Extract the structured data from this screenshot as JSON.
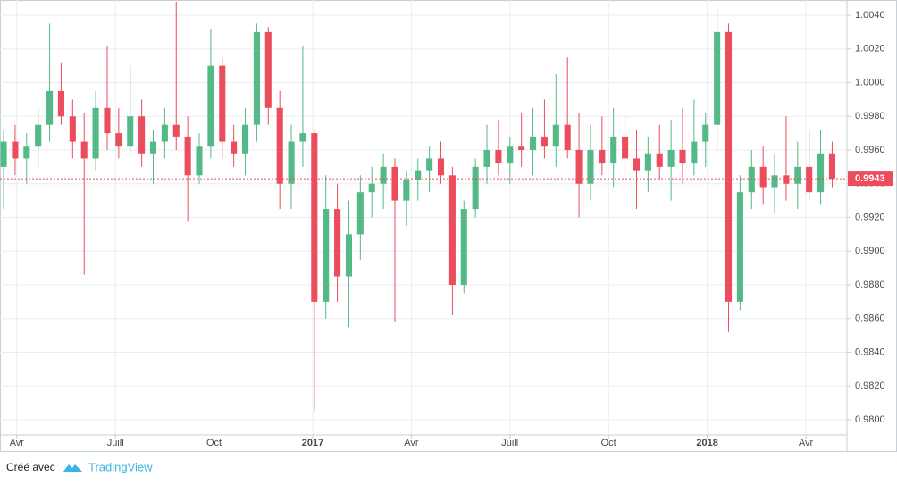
{
  "chart_data": {
    "type": "candlestick",
    "x": [
      2.6,
      2.95,
      3.3,
      3.65,
      4.0,
      4.35,
      4.7,
      5.05,
      5.4,
      5.75,
      6.1,
      6.45,
      6.8,
      7.15,
      7.5,
      7.85,
      8.2,
      8.55,
      8.9,
      9.25,
      9.6,
      9.95,
      10.3,
      10.65,
      11.0,
      11.35,
      11.7,
      12.05,
      12.4,
      12.75,
      13.1,
      13.45,
      13.8,
      14.15,
      14.5,
      14.85,
      15.2,
      15.55,
      15.9,
      16.25,
      16.6,
      16.95,
      17.3,
      17.65,
      18.0,
      18.35,
      18.7,
      19.05,
      19.4,
      19.75,
      20.1,
      20.45,
      20.8,
      21.15,
      21.5,
      21.85,
      22.2,
      22.55,
      22.9,
      23.25,
      23.6,
      23.95,
      24.3,
      24.65,
      25.0,
      25.35,
      25.7,
      26.05,
      26.4,
      26.75,
      27.1,
      27.45,
      27.8
    ],
    "open": [
      0.995,
      0.9965,
      0.9955,
      0.9962,
      0.9975,
      0.9995,
      0.998,
      0.9965,
      0.9955,
      0.9985,
      0.997,
      0.9962,
      0.998,
      0.9958,
      0.9965,
      0.9975,
      0.9968,
      0.9945,
      0.9962,
      1.001,
      0.9965,
      0.9958,
      0.9975,
      1.003,
      0.9985,
      0.994,
      0.9965,
      0.997,
      0.987,
      0.9925,
      0.9885,
      0.991,
      0.9935,
      0.994,
      0.995,
      0.993,
      0.9942,
      0.9948,
      0.9955,
      0.9945,
      0.988,
      0.9925,
      0.995,
      0.996,
      0.9952,
      0.9962,
      0.996,
      0.9968,
      0.9962,
      0.9975,
      0.996,
      0.994,
      0.996,
      0.9952,
      0.9968,
      0.9955,
      0.9948,
      0.9958,
      0.995,
      0.996,
      0.9952,
      0.9965,
      0.9975,
      1.003,
      0.987,
      0.9935,
      0.995,
      0.9938,
      0.9945,
      0.994,
      0.995,
      0.9935,
      0.9958
    ],
    "high": [
      0.9972,
      0.9975,
      0.997,
      0.9985,
      1.0035,
      1.0012,
      0.999,
      0.9982,
      0.9995,
      1.0022,
      0.9985,
      1.001,
      0.999,
      0.9972,
      0.9985,
      1.0048,
      0.998,
      0.997,
      1.0032,
      1.0015,
      0.9975,
      0.9985,
      1.0035,
      1.0033,
      0.9995,
      0.9975,
      1.0022,
      0.9972,
      0.9945,
      0.994,
      0.993,
      0.9945,
      0.995,
      0.9958,
      0.9955,
      0.9948,
      0.9955,
      0.9962,
      0.9965,
      0.995,
      0.993,
      0.9955,
      0.9975,
      0.9978,
      0.9968,
      0.9982,
      0.9985,
      0.999,
      1.0005,
      1.0015,
      0.9982,
      0.9975,
      0.998,
      0.9985,
      0.998,
      0.9972,
      0.9968,
      0.9975,
      0.9978,
      0.9985,
      0.999,
      0.9982,
      1.0044,
      1.0035,
      0.9945,
      0.996,
      0.9962,
      0.9958,
      0.998,
      0.9965,
      0.9972,
      0.9972,
      0.9965
    ],
    "low": [
      0.9925,
      0.9945,
      0.994,
      0.995,
      0.9965,
      0.9975,
      0.9955,
      0.9886,
      0.9948,
      0.996,
      0.9955,
      0.9958,
      0.995,
      0.994,
      0.9955,
      0.996,
      0.9918,
      0.994,
      0.9955,
      0.9955,
      0.995,
      0.9945,
      0.9965,
      0.9975,
      0.9925,
      0.9925,
      0.995,
      0.9805,
      0.986,
      0.987,
      0.9855,
      0.9895,
      0.992,
      0.9925,
      0.9858,
      0.9915,
      0.993,
      0.9935,
      0.994,
      0.9862,
      0.9875,
      0.992,
      0.994,
      0.9945,
      0.994,
      0.995,
      0.9945,
      0.9955,
      0.995,
      0.9955,
      0.992,
      0.993,
      0.9945,
      0.9938,
      0.9945,
      0.9925,
      0.9935,
      0.9942,
      0.993,
      0.994,
      0.9945,
      0.995,
      0.996,
      0.9852,
      0.9865,
      0.9925,
      0.9928,
      0.9922,
      0.993,
      0.9925,
      0.993,
      0.9928,
      0.9938
    ],
    "close": [
      0.9965,
      0.9955,
      0.9962,
      0.9975,
      0.9995,
      0.998,
      0.9965,
      0.9955,
      0.9985,
      0.997,
      0.9962,
      0.998,
      0.9958,
      0.9965,
      0.9975,
      0.9968,
      0.9945,
      0.9962,
      1.001,
      0.9965,
      0.9958,
      0.9975,
      1.003,
      0.9985,
      0.994,
      0.9965,
      0.997,
      0.987,
      0.9925,
      0.9885,
      0.991,
      0.9935,
      0.994,
      0.995,
      0.993,
      0.9942,
      0.9948,
      0.9955,
      0.9945,
      0.988,
      0.9925,
      0.995,
      0.996,
      0.9952,
      0.9962,
      0.996,
      0.9968,
      0.9962,
      0.9975,
      0.996,
      0.994,
      0.996,
      0.9952,
      0.9968,
      0.9955,
      0.9948,
      0.9958,
      0.995,
      0.996,
      0.9952,
      0.9965,
      0.9975,
      1.003,
      0.987,
      0.9935,
      0.995,
      0.9938,
      0.9945,
      0.994,
      0.995,
      0.9935,
      0.9958,
      0.9943
    ],
    "up_color": "#53b987",
    "down_color": "#eb4d5c",
    "xlim": [
      2.49,
      28.25
    ],
    "ylim": [
      0.9791,
      1.0049
    ],
    "xticks": [
      {
        "value": 3,
        "label": "Avr"
      },
      {
        "value": 6,
        "label": "Juill"
      },
      {
        "value": 9,
        "label": "Oct"
      },
      {
        "value": 12,
        "label": "2017"
      },
      {
        "value": 15,
        "label": "Avr"
      },
      {
        "value": 18,
        "label": "Juill"
      },
      {
        "value": 21,
        "label": "Oct"
      },
      {
        "value": 24,
        "label": "2018"
      },
      {
        "value": 27,
        "label": "Avr"
      }
    ],
    "yticks": [
      {
        "value": 0.98,
        "label": "0.9800"
      },
      {
        "value": 0.982,
        "label": "0.9820"
      },
      {
        "value": 0.984,
        "label": "0.9840"
      },
      {
        "value": 0.986,
        "label": "0.9860"
      },
      {
        "value": 0.988,
        "label": "0.9880"
      },
      {
        "value": 0.99,
        "label": "0.9900"
      },
      {
        "value": 0.992,
        "label": "0.9920"
      },
      {
        "value": 0.994,
        "label": "0.9940"
      },
      {
        "value": 0.996,
        "label": "0.9960"
      },
      {
        "value": 0.998,
        "label": "0.9980"
      },
      {
        "value": 1.0,
        "label": "1.0000"
      },
      {
        "value": 1.002,
        "label": "1.0020"
      },
      {
        "value": 1.004,
        "label": "1.0040"
      }
    ],
    "grid": true
  },
  "footer": {
    "text": "Créé avec",
    "brand": "TradingView"
  }
}
